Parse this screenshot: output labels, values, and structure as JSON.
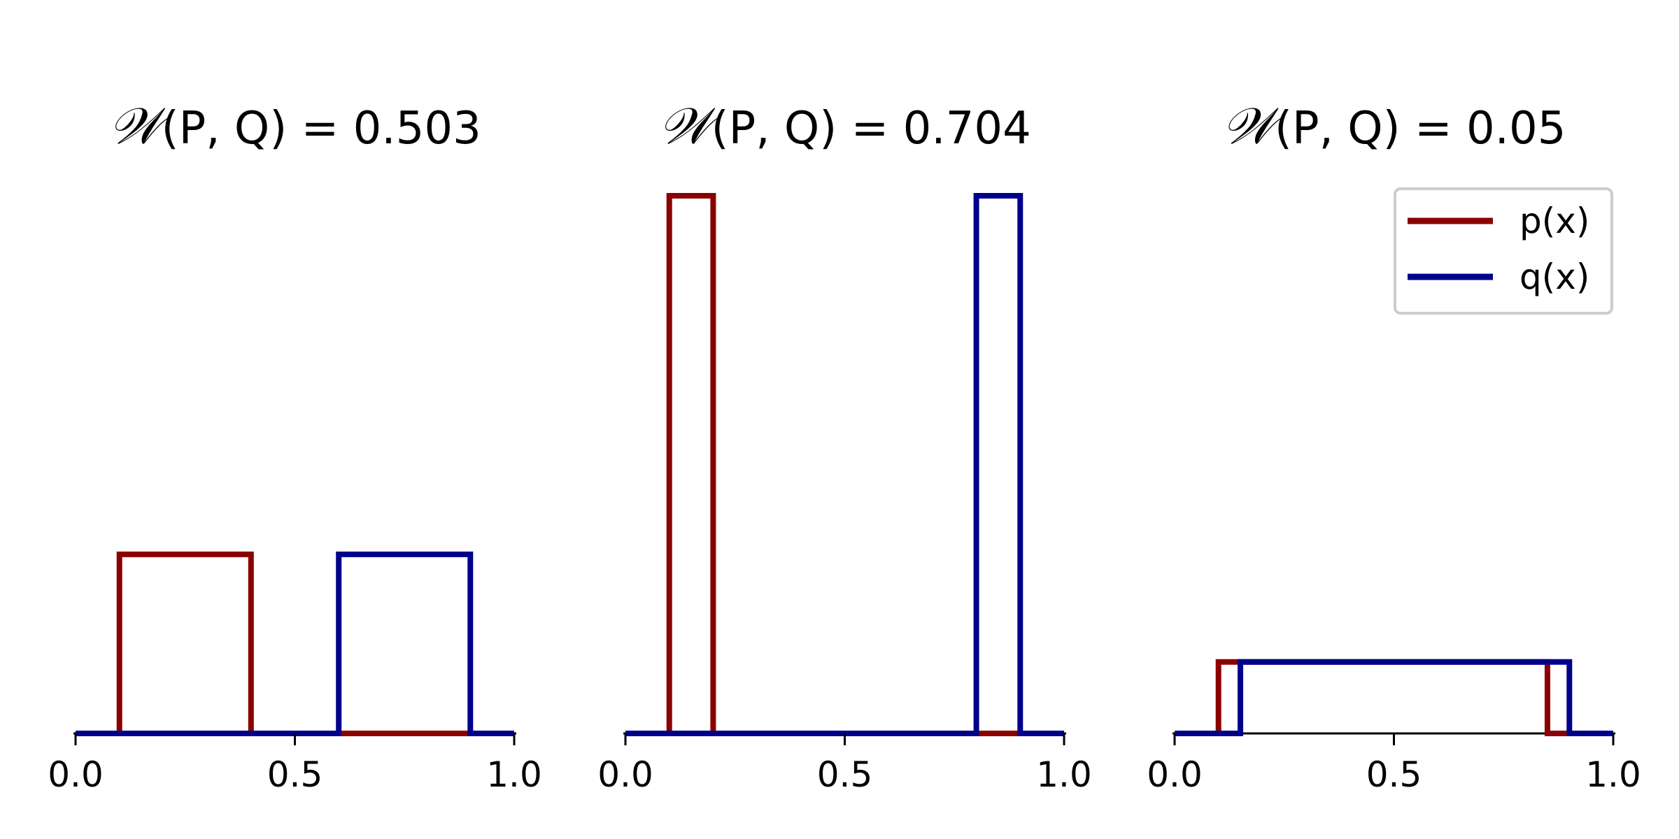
{
  "chart_data": [
    {
      "type": "line",
      "title_prefix": "𝒲",
      "title": "(P, Q) = 0.503",
      "xlim": [
        0.0,
        1.0
      ],
      "ylim": [
        0,
        1.0
      ],
      "xticks": [
        "0.0",
        "0.5",
        "1.0"
      ],
      "y_axis_visible": false,
      "series": [
        {
          "name": "p(x)",
          "color": "#8b0000",
          "x": [
            0.0,
            0.1,
            0.1,
            0.4,
            0.4,
            1.0
          ],
          "y": [
            0,
            0,
            0.333,
            0.333,
            0,
            0
          ]
        },
        {
          "name": "q(x)",
          "color": "#00008b",
          "x": [
            0.0,
            0.6,
            0.6,
            0.9,
            0.9,
            1.0
          ],
          "y": [
            0,
            0,
            0.333,
            0.333,
            0,
            0
          ]
        }
      ]
    },
    {
      "type": "line",
      "title_prefix": "𝒲",
      "title": "(P, Q) = 0.704",
      "xlim": [
        0.0,
        1.0
      ],
      "ylim": [
        0,
        1.0
      ],
      "xticks": [
        "0.0",
        "0.5",
        "1.0"
      ],
      "y_axis_visible": false,
      "series": [
        {
          "name": "p(x)",
          "color": "#8b0000",
          "x": [
            0.0,
            0.1,
            0.1,
            0.2,
            0.2,
            1.0
          ],
          "y": [
            0,
            0,
            1.0,
            1.0,
            0,
            0
          ]
        },
        {
          "name": "q(x)",
          "color": "#00008b",
          "x": [
            0.0,
            0.8,
            0.8,
            0.9,
            0.9,
            1.0
          ],
          "y": [
            0,
            0,
            1.0,
            1.0,
            0,
            0
          ]
        }
      ]
    },
    {
      "type": "line",
      "title_prefix": "𝒲",
      "title": "(P, Q) = 0.05",
      "xlim": [
        0.0,
        1.0
      ],
      "ylim": [
        0,
        1.0
      ],
      "xticks": [
        "0.0",
        "0.5",
        "1.0"
      ],
      "y_axis_visible": false,
      "legend": {
        "placement": "upper-right",
        "entries": [
          "p(x)",
          "q(x)"
        ]
      },
      "series": [
        {
          "name": "p(x)",
          "color": "#8b0000",
          "x": [
            0.0,
            0.1,
            0.1,
            0.85,
            0.85,
            1.0
          ],
          "y": [
            0,
            0,
            0.133,
            0.133,
            0,
            0
          ]
        },
        {
          "name": "q(x)",
          "color": "#00008b",
          "x": [
            0.0,
            0.15,
            0.15,
            0.9,
            0.9,
            1.0
          ],
          "y": [
            0,
            0,
            0.133,
            0.133,
            0,
            0
          ]
        }
      ]
    }
  ]
}
